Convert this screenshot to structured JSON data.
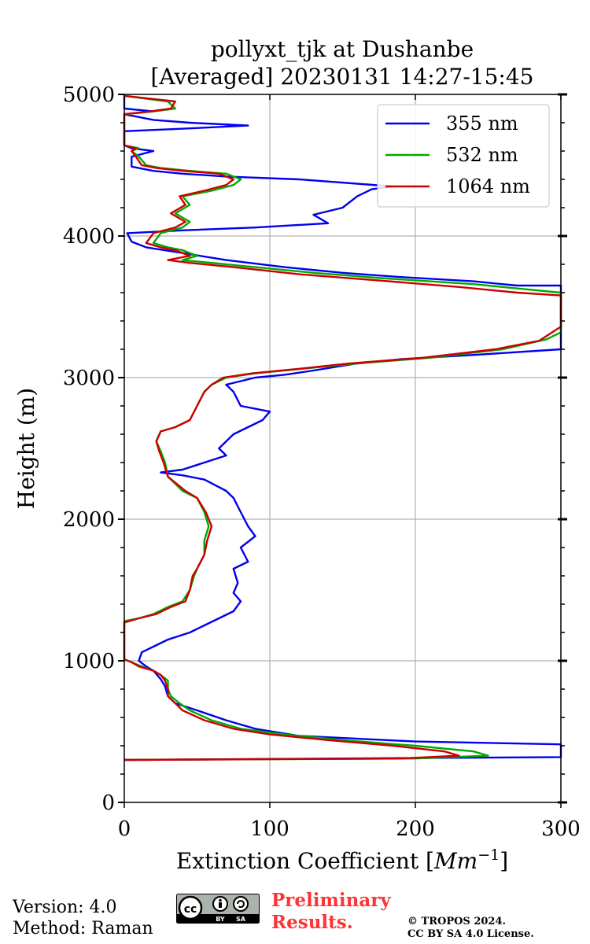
{
  "chart_data": {
    "type": "line",
    "title": "pollyxt_tjk at Dushanbe",
    "subtitle": "[Averaged] 20230131 14:27-15:45",
    "xlabel_text": "Extinction Coefficient [",
    "xlabel_math": "Mm",
    "xlabel_exp": "−1",
    "xlabel_close": "]",
    "ylabel": "Height (m)",
    "xlim": [
      0,
      300
    ],
    "ylim": [
      0,
      5000
    ],
    "xticks": [
      0,
      100,
      200,
      300
    ],
    "xtick_labels": [
      "0",
      "100",
      "200",
      "300"
    ],
    "yticks": [
      0,
      1000,
      2000,
      3000,
      4000,
      5000
    ],
    "ytick_labels": [
      "0",
      "1000",
      "2000",
      "3000",
      "4000",
      "5000"
    ],
    "grid": true,
    "legend_position": "top-right",
    "series": [
      {
        "name": "355 nm",
        "color": "#0000ee",
        "points": [
          [
            0,
            300
          ],
          [
            300,
            320
          ],
          [
            300,
            410
          ],
          [
            200,
            430
          ],
          [
            120,
            470
          ],
          [
            90,
            520
          ],
          [
            70,
            580
          ],
          [
            50,
            650
          ],
          [
            35,
            700
          ],
          [
            30,
            750
          ],
          [
            28,
            820
          ],
          [
            25,
            870
          ],
          [
            20,
            930
          ],
          [
            15,
            960
          ],
          [
            10,
            1000
          ],
          [
            12,
            1060
          ],
          [
            20,
            1100
          ],
          [
            30,
            1150
          ],
          [
            45,
            1200
          ],
          [
            55,
            1250
          ],
          [
            65,
            1300
          ],
          [
            75,
            1350
          ],
          [
            80,
            1420
          ],
          [
            75,
            1480
          ],
          [
            78,
            1550
          ],
          [
            75,
            1650
          ],
          [
            85,
            1700
          ],
          [
            80,
            1800
          ],
          [
            90,
            1880
          ],
          [
            85,
            1950
          ],
          [
            80,
            2050
          ],
          [
            75,
            2150
          ],
          [
            70,
            2200
          ],
          [
            55,
            2280
          ],
          [
            40,
            2310
          ],
          [
            25,
            2330
          ],
          [
            40,
            2350
          ],
          [
            55,
            2400
          ],
          [
            70,
            2450
          ],
          [
            65,
            2500
          ],
          [
            75,
            2600
          ],
          [
            85,
            2650
          ],
          [
            95,
            2700
          ],
          [
            100,
            2760
          ],
          [
            80,
            2800
          ],
          [
            75,
            2900
          ],
          [
            70,
            2950
          ],
          [
            90,
            3000
          ],
          [
            110,
            3020
          ],
          [
            130,
            3050
          ],
          [
            160,
            3100
          ],
          [
            190,
            3130
          ],
          [
            240,
            3160
          ],
          [
            300,
            3200
          ],
          [
            300,
            3650
          ],
          [
            270,
            3650
          ],
          [
            240,
            3680
          ],
          [
            190,
            3710
          ],
          [
            150,
            3740
          ],
          [
            110,
            3780
          ],
          [
            70,
            3830
          ],
          [
            40,
            3880
          ],
          [
            15,
            3920
          ],
          [
            5,
            3960
          ],
          [
            2,
            4020
          ],
          [
            40,
            4040
          ],
          [
            90,
            4060
          ],
          [
            140,
            4090
          ],
          [
            130,
            4150
          ],
          [
            150,
            4200
          ],
          [
            160,
            4280
          ],
          [
            170,
            4330
          ],
          [
            185,
            4350
          ],
          [
            120,
            4400
          ],
          [
            70,
            4420
          ],
          [
            40,
            4440
          ],
          [
            20,
            4460
          ],
          [
            5,
            4490
          ],
          [
            5,
            4560
          ],
          [
            20,
            4600
          ],
          [
            5,
            4620
          ],
          [
            0,
            4640
          ],
          [
            0,
            4740
          ],
          [
            45,
            4760
          ],
          [
            85,
            4780
          ],
          [
            45,
            4800
          ],
          [
            20,
            4820
          ],
          [
            10,
            4840
          ],
          [
            0,
            4860
          ],
          [
            20,
            4880
          ],
          [
            0,
            4900
          ],
          [
            0,
            4990
          ]
        ]
      },
      {
        "name": "532 nm",
        "color": "#00aa00",
        "points": [
          [
            0,
            300
          ],
          [
            200,
            310
          ],
          [
            250,
            330
          ],
          [
            240,
            360
          ],
          [
            200,
            400
          ],
          [
            150,
            440
          ],
          [
            110,
            480
          ],
          [
            80,
            520
          ],
          [
            60,
            580
          ],
          [
            45,
            650
          ],
          [
            38,
            700
          ],
          [
            32,
            750
          ],
          [
            30,
            800
          ],
          [
            30,
            860
          ],
          [
            25,
            900
          ],
          [
            20,
            930
          ],
          [
            12,
            960
          ],
          [
            5,
            990
          ],
          [
            0,
            1010
          ],
          [
            0,
            1280
          ],
          [
            10,
            1300
          ],
          [
            20,
            1330
          ],
          [
            30,
            1380
          ],
          [
            40,
            1420
          ],
          [
            45,
            1500
          ],
          [
            48,
            1600
          ],
          [
            50,
            1650
          ],
          [
            55,
            1750
          ],
          [
            55,
            1850
          ],
          [
            58,
            1950
          ],
          [
            55,
            2050
          ],
          [
            50,
            2150
          ],
          [
            40,
            2200
          ],
          [
            35,
            2250
          ],
          [
            30,
            2300
          ],
          [
            28,
            2400
          ],
          [
            25,
            2480
          ],
          [
            22,
            2550
          ],
          [
            25,
            2620
          ],
          [
            35,
            2650
          ],
          [
            45,
            2700
          ],
          [
            50,
            2800
          ],
          [
            55,
            2900
          ],
          [
            60,
            2950
          ],
          [
            70,
            3000
          ],
          [
            90,
            3030
          ],
          [
            120,
            3060
          ],
          [
            160,
            3100
          ],
          [
            210,
            3140
          ],
          [
            260,
            3200
          ],
          [
            290,
            3270
          ],
          [
            300,
            3320
          ],
          [
            300,
            3500
          ],
          [
            300,
            3600
          ],
          [
            280,
            3620
          ],
          [
            240,
            3660
          ],
          [
            180,
            3700
          ],
          [
            130,
            3740
          ],
          [
            80,
            3790
          ],
          [
            50,
            3820
          ],
          [
            40,
            3830
          ],
          [
            50,
            3860
          ],
          [
            40,
            3900
          ],
          [
            30,
            3920
          ],
          [
            20,
            3950
          ],
          [
            25,
            4020
          ],
          [
            40,
            4060
          ],
          [
            45,
            4100
          ],
          [
            35,
            4160
          ],
          [
            45,
            4220
          ],
          [
            40,
            4280
          ],
          [
            60,
            4320
          ],
          [
            75,
            4360
          ],
          [
            80,
            4400
          ],
          [
            70,
            4440
          ],
          [
            45,
            4460
          ],
          [
            25,
            4480
          ],
          [
            15,
            4500
          ],
          [
            10,
            4560
          ],
          [
            5,
            4600
          ],
          [
            10,
            4620
          ],
          [
            0,
            4640
          ],
          [
            0,
            4860
          ],
          [
            20,
            4880
          ],
          [
            35,
            4900
          ],
          [
            30,
            4950
          ],
          [
            0,
            4990
          ]
        ]
      },
      {
        "name": "1064 nm",
        "color": "#cc0000",
        "points": [
          [
            0,
            300
          ],
          [
            190,
            310
          ],
          [
            230,
            330
          ],
          [
            220,
            360
          ],
          [
            185,
            400
          ],
          [
            140,
            440
          ],
          [
            100,
            480
          ],
          [
            75,
            520
          ],
          [
            55,
            580
          ],
          [
            40,
            650
          ],
          [
            35,
            700
          ],
          [
            30,
            750
          ],
          [
            30,
            800
          ],
          [
            28,
            860
          ],
          [
            25,
            900
          ],
          [
            20,
            930
          ],
          [
            10,
            960
          ],
          [
            5,
            990
          ],
          [
            0,
            1010
          ],
          [
            0,
            1270
          ],
          [
            10,
            1300
          ],
          [
            22,
            1330
          ],
          [
            32,
            1380
          ],
          [
            42,
            1420
          ],
          [
            45,
            1500
          ],
          [
            47,
            1600
          ],
          [
            50,
            1650
          ],
          [
            55,
            1750
          ],
          [
            57,
            1850
          ],
          [
            60,
            1950
          ],
          [
            56,
            2050
          ],
          [
            50,
            2150
          ],
          [
            42,
            2200
          ],
          [
            36,
            2250
          ],
          [
            30,
            2300
          ],
          [
            27,
            2400
          ],
          [
            24,
            2480
          ],
          [
            22,
            2550
          ],
          [
            25,
            2620
          ],
          [
            35,
            2650
          ],
          [
            45,
            2700
          ],
          [
            50,
            2800
          ],
          [
            55,
            2900
          ],
          [
            60,
            2950
          ],
          [
            68,
            3000
          ],
          [
            88,
            3030
          ],
          [
            118,
            3060
          ],
          [
            155,
            3100
          ],
          [
            205,
            3140
          ],
          [
            255,
            3200
          ],
          [
            285,
            3260
          ],
          [
            300,
            3360
          ],
          [
            300,
            3580
          ],
          [
            270,
            3600
          ],
          [
            230,
            3640
          ],
          [
            170,
            3690
          ],
          [
            120,
            3730
          ],
          [
            75,
            3780
          ],
          [
            45,
            3810
          ],
          [
            30,
            3830
          ],
          [
            45,
            3860
          ],
          [
            35,
            3900
          ],
          [
            25,
            3920
          ],
          [
            15,
            3950
          ],
          [
            20,
            4020
          ],
          [
            35,
            4060
          ],
          [
            42,
            4100
          ],
          [
            32,
            4160
          ],
          [
            42,
            4220
          ],
          [
            38,
            4280
          ],
          [
            55,
            4320
          ],
          [
            70,
            4360
          ],
          [
            75,
            4400
          ],
          [
            65,
            4440
          ],
          [
            40,
            4460
          ],
          [
            22,
            4480
          ],
          [
            12,
            4500
          ],
          [
            8,
            4560
          ],
          [
            5,
            4600
          ],
          [
            8,
            4620
          ],
          [
            0,
            4640
          ],
          [
            0,
            4860
          ],
          [
            18,
            4880
          ],
          [
            32,
            4900
          ],
          [
            35,
            4950
          ],
          [
            0,
            4990
          ]
        ]
      }
    ]
  },
  "footer": {
    "version": "Version: 4.0",
    "method": "Method: Raman",
    "license_badge": [
      "cc",
      "BY",
      "SA"
    ],
    "preliminary_line1": "Preliminary",
    "preliminary_line2": "Results.",
    "copyright_line1": "© TROPOS 2024.",
    "copyright_line2": "CC BY SA 4.0 License."
  }
}
